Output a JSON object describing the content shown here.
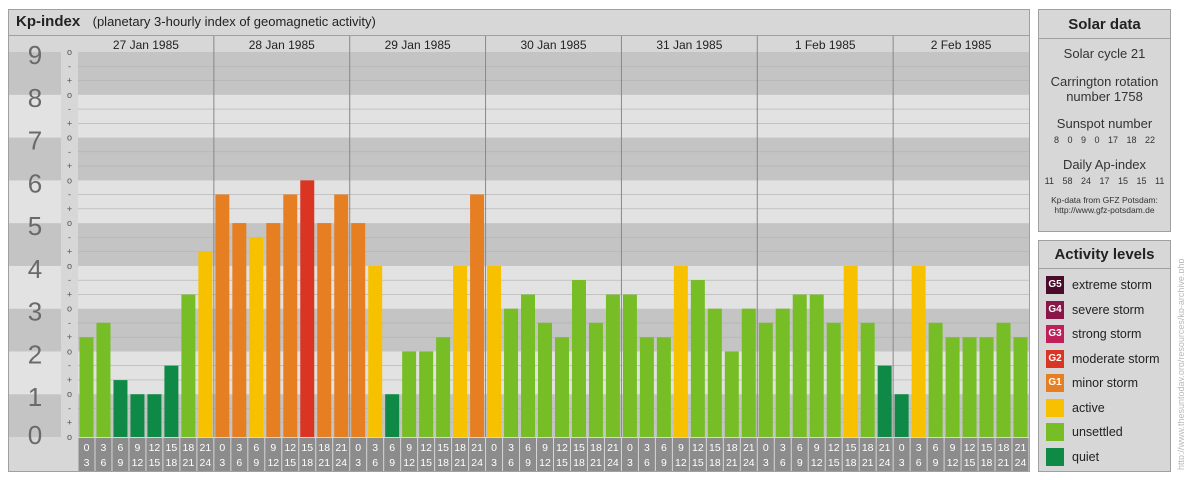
{
  "header": {
    "title": "Kp-index",
    "subtitle": "(planetary 3-hourly index of geomagnetic activity)"
  },
  "chart_data": {
    "type": "bar",
    "title": "Kp-index",
    "subtitle": "(planetary 3-hourly index of geomagnetic activity)",
    "ylim": [
      0,
      9
    ],
    "y_ticks": [
      "0",
      "1",
      "2",
      "3",
      "4",
      "5",
      "6",
      "7",
      "8",
      "9"
    ],
    "y_minor_marks": [
      "o",
      "+",
      "-"
    ],
    "days": [
      "27 Jan 1985",
      "28 Jan 1985",
      "29 Jan 1985",
      "30 Jan 1985",
      "31 Jan 1985",
      "1 Feb 1985",
      "2 Feb 1985"
    ],
    "interval_labels": [
      [
        "0",
        "3"
      ],
      [
        "3",
        "6"
      ],
      [
        "6",
        "9"
      ],
      [
        "9",
        "12"
      ],
      [
        "12",
        "15"
      ],
      [
        "15",
        "18"
      ],
      [
        "18",
        "21"
      ],
      [
        "21",
        "24"
      ]
    ],
    "values": [
      [
        2.33,
        2.67,
        1.33,
        1.0,
        1.0,
        1.67,
        3.33,
        4.33
      ],
      [
        5.67,
        5.0,
        4.67,
        5.0,
        5.67,
        6.0,
        5.0,
        5.67
      ],
      [
        5.0,
        4.0,
        1.0,
        2.0,
        2.0,
        2.33,
        4.0,
        5.67
      ],
      [
        4.0,
        3.0,
        3.33,
        2.67,
        2.33,
        3.67,
        2.67,
        3.33
      ],
      [
        3.33,
        2.33,
        2.33,
        4.0,
        3.67,
        3.0,
        2.0,
        3.0
      ],
      [
        2.67,
        3.0,
        3.33,
        3.33,
        2.67,
        4.0,
        2.67,
        1.67
      ],
      [
        1.0,
        4.0,
        2.67,
        2.33,
        2.33,
        2.33,
        2.67,
        2.33
      ]
    ],
    "color_rules": [
      {
        "min": 0,
        "max": 1.99,
        "level": "quiet",
        "color": "#0f8a46"
      },
      {
        "min": 2,
        "max": 3.99,
        "level": "unsettled",
        "color": "#77bd25"
      },
      {
        "min": 4,
        "max": 4.99,
        "level": "active",
        "color": "#f7c100"
      },
      {
        "min": 5,
        "max": 5.99,
        "level": "G1",
        "color": "#e67e22"
      },
      {
        "min": 6,
        "max": 6.99,
        "level": "G2",
        "color": "#d93522"
      }
    ]
  },
  "solar_data": {
    "title": "Solar data",
    "solar_cycle": "Solar cycle 21",
    "carrington_line1": "Carrington rotation",
    "carrington_line2": "number 1758",
    "sunspot_title": "Sunspot number",
    "sunspot_values": "8 0 9 0 17 18 22",
    "ap_title": "Daily Ap-index",
    "ap_values": "11 58 24 17 15 15 11",
    "source_line1": "Kp-data from GFZ Potsdam:",
    "source_line2": "http://www.gfz-potsdam.de"
  },
  "activity_levels": {
    "title": "Activity levels",
    "items": [
      {
        "code": "G5",
        "label": "extreme storm",
        "color": "#4a0a2a"
      },
      {
        "code": "G4",
        "label": "severe storm",
        "color": "#8a1548"
      },
      {
        "code": "G3",
        "label": "strong storm",
        "color": "#c0205a"
      },
      {
        "code": "G2",
        "label": "moderate storm",
        "color": "#d93522"
      },
      {
        "code": "G1",
        "label": "minor storm",
        "color": "#e67e22"
      },
      {
        "code": "",
        "label": "active",
        "color": "#f7c100"
      },
      {
        "code": "",
        "label": "unsettled",
        "color": "#77bd25"
      },
      {
        "code": "",
        "label": "quiet",
        "color": "#0f8a46"
      }
    ]
  },
  "watermark": "http://www.thesuntoday.org/resources/kp-archive.php"
}
